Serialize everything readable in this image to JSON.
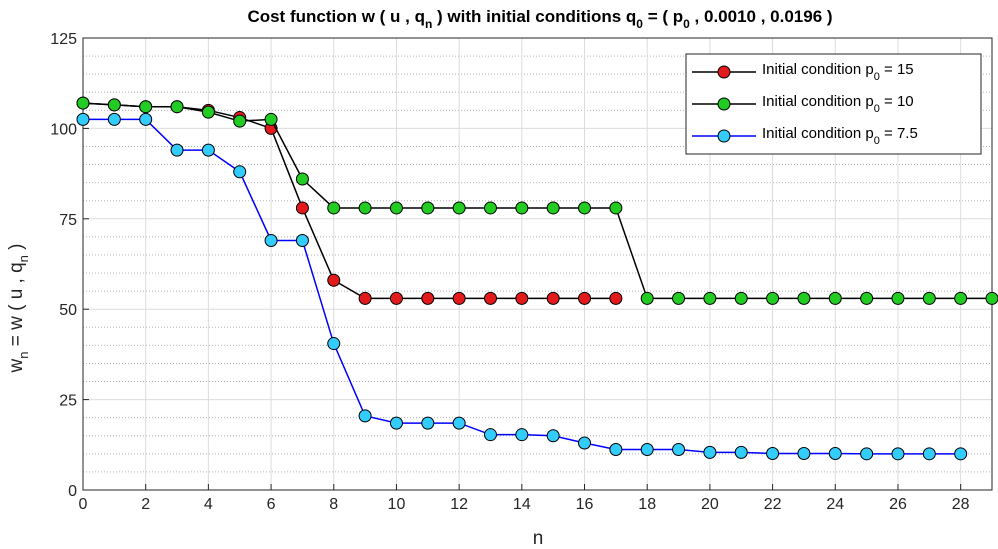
{
  "chart_data": {
    "type": "line",
    "title": {
      "prefix": "Cost function w ( u , q",
      "prefix_sub": "n",
      "middle": " ) with initial conditions q",
      "middle_sub": "0",
      "after_q": " = ( p",
      "after_q_sub": "0",
      "suffix": " , 0.0010 , 0.0196 )"
    },
    "xlabel": "n",
    "ylabel": {
      "w": "w",
      "w_sub": "n",
      "mid": " = w ( u , q",
      "q_sub": "n",
      "end": " )"
    },
    "xlim": [
      0,
      29
    ],
    "ylim": [
      0,
      125
    ],
    "x_ticks": [
      0,
      2,
      4,
      6,
      8,
      10,
      12,
      14,
      16,
      18,
      20,
      22,
      24,
      26,
      28
    ],
    "y_ticks": [
      0,
      25,
      50,
      75,
      100,
      125
    ],
    "grid": {
      "major": true,
      "minor_y": true,
      "minor_y_step": 5
    },
    "legend_position": "top-right",
    "series": [
      {
        "legend": {
          "text": "Initial condition p",
          "sub": "0",
          "suffix": " = 15"
        },
        "line_color": "#000000",
        "marker_color": "#e31a1c",
        "x": [
          0,
          1,
          2,
          3,
          4,
          5,
          6,
          7,
          8,
          9,
          10,
          11,
          12,
          13,
          14,
          15,
          16,
          17
        ],
        "y": [
          107,
          106.5,
          106,
          106,
          105,
          103,
          100,
          78,
          58,
          53,
          53,
          53,
          53,
          53,
          53,
          53,
          53,
          53
        ]
      },
      {
        "legend": {
          "text": "Initial condition p",
          "sub": "0",
          "suffix": " = 10"
        },
        "line_color": "#000000",
        "marker_color": "#22cc22",
        "x": [
          0,
          1,
          2,
          3,
          4,
          5,
          6,
          7,
          8,
          9,
          10,
          11,
          12,
          13,
          14,
          15,
          16,
          17,
          18,
          19,
          20,
          21,
          22,
          23,
          24,
          25,
          26,
          27,
          28,
          29
        ],
        "y": [
          107,
          106.5,
          106,
          106,
          104.5,
          102,
          102.5,
          86,
          78,
          78,
          78,
          78,
          78,
          78,
          78,
          78,
          78,
          78,
          53,
          53,
          53,
          53,
          53,
          53,
          53,
          53,
          53,
          53,
          53,
          53
        ]
      },
      {
        "legend": {
          "text": "Initial condition p",
          "sub": "0",
          "suffix": " = 7.5"
        },
        "line_color": "#0000ff",
        "marker_color": "#33ccff",
        "x": [
          0,
          1,
          2,
          3,
          4,
          5,
          6,
          7,
          8,
          9,
          10,
          11,
          12,
          13,
          14,
          15,
          16,
          17,
          18,
          19,
          20,
          21,
          22,
          23,
          24,
          25,
          26,
          27,
          28
        ],
        "y": [
          102.5,
          102.5,
          102.5,
          94,
          94,
          88,
          69,
          69,
          40.5,
          20.5,
          18.5,
          18.5,
          18.5,
          15.3,
          15.3,
          15,
          13,
          11.2,
          11.2,
          11.2,
          10.4,
          10.4,
          10.1,
          10.1,
          10.1,
          10,
          10,
          10,
          10
        ]
      }
    ]
  }
}
